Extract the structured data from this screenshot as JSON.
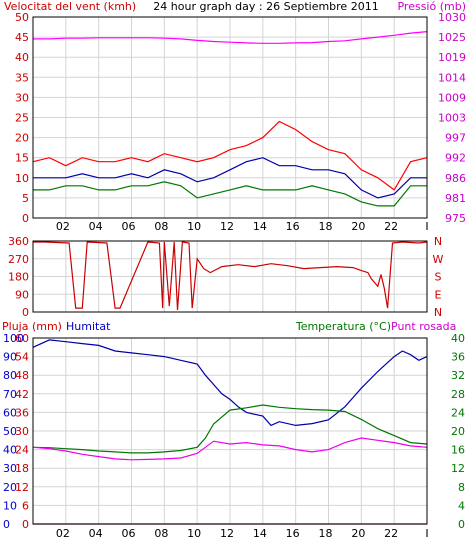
{
  "chart_data": [
    {
      "type": "line",
      "title": "24 hour graph day : 26 Septiembre 2011",
      "left_axis_label": "Velocitat del vent (kmh)",
      "right_axis_label": "Pressió (mb)",
      "x_tick_labels": [
        "02",
        "04",
        "06",
        "08",
        "10",
        "12",
        "14",
        "16",
        "18",
        "20",
        "22",
        "I"
      ],
      "left_ticks": [
        "0",
        "5",
        "10",
        "15",
        "20",
        "25",
        "30",
        "35",
        "40",
        "45",
        "50"
      ],
      "right_ticks": [
        "975",
        "981",
        "986",
        "992",
        "997",
        "1003",
        "1009",
        "1014",
        "1019",
        "1025",
        "1030"
      ],
      "ylim_left": [
        0,
        50
      ],
      "ylim_right": [
        975,
        1030
      ],
      "series": [
        {
          "name": "Pressió",
          "axis": "right",
          "color": "#ff00ff",
          "x": [
            0,
            1,
            2,
            3,
            4,
            5,
            6,
            7,
            8,
            9,
            10,
            11,
            12,
            13,
            14,
            15,
            16,
            17,
            18,
            19,
            20,
            21,
            22,
            23,
            24
          ],
          "values": [
            1024.0,
            1024.0,
            1024.2,
            1024.2,
            1024.3,
            1024.3,
            1024.3,
            1024.3,
            1024.2,
            1024.0,
            1023.6,
            1023.3,
            1023.1,
            1022.9,
            1022.8,
            1022.8,
            1022.9,
            1023.0,
            1023.3,
            1023.5,
            1024.0,
            1024.5,
            1025.0,
            1025.6,
            1026.0
          ]
        },
        {
          "name": "",
          "axis": "left",
          "color": "#ff0000",
          "x": [
            0,
            1,
            2,
            3,
            4,
            5,
            6,
            7,
            8,
            9,
            10,
            11,
            12,
            13,
            14,
            15,
            16,
            17,
            18,
            19,
            20,
            21,
            22,
            23,
            24
          ],
          "values": [
            14,
            15,
            13,
            15,
            14,
            14,
            15,
            14,
            16,
            15,
            14,
            15,
            17,
            18,
            20,
            24,
            22,
            19,
            17,
            16,
            12,
            10,
            7,
            14,
            15
          ]
        },
        {
          "name": "",
          "axis": "left",
          "color": "#0000aa",
          "x": [
            0,
            1,
            2,
            3,
            4,
            5,
            6,
            7,
            8,
            9,
            10,
            11,
            12,
            13,
            14,
            15,
            16,
            17,
            18,
            19,
            20,
            21,
            22,
            23,
            24
          ],
          "values": [
            10,
            10,
            10,
            11,
            10,
            10,
            11,
            10,
            12,
            11,
            9,
            10,
            12,
            14,
            15,
            13,
            13,
            12,
            12,
            11,
            7,
            5,
            6,
            10,
            10
          ]
        },
        {
          "name": "",
          "axis": "left",
          "color": "#007700",
          "x": [
            0,
            1,
            2,
            3,
            4,
            5,
            6,
            7,
            8,
            9,
            10,
            11,
            12,
            13,
            14,
            15,
            16,
            17,
            18,
            19,
            20,
            21,
            22,
            23,
            24
          ],
          "values": [
            7,
            7,
            8,
            8,
            7,
            7,
            8,
            8,
            9,
            8,
            5,
            6,
            7,
            8,
            7,
            7,
            7,
            8,
            7,
            6,
            4,
            3,
            3,
            8,
            8
          ]
        }
      ]
    },
    {
      "type": "line",
      "left_ticks": [
        "360",
        "270",
        "180",
        "90",
        "0"
      ],
      "right_labels": [
        "N",
        "W",
        "S",
        "E",
        "N"
      ],
      "ylim": [
        0,
        360
      ],
      "series": [
        {
          "name": "",
          "color": "#cc0000",
          "x": [
            0,
            0.7,
            2.2,
            2.6,
            3.0,
            3.3,
            4.5,
            5.0,
            5.3,
            7.0,
            7.7,
            7.9,
            8.0,
            8.3,
            8.6,
            8.8,
            9.1,
            9.5,
            9.7,
            10.0,
            10.4,
            10.8,
            11.5,
            12.5,
            13.5,
            14.5,
            15.5,
            16.5,
            17.5,
            18.5,
            19.5,
            20.0,
            20.4,
            20.6,
            21.0,
            21.2,
            21.4,
            21.6,
            21.9,
            22.5,
            23.5,
            24.0
          ],
          "values": [
            355,
            355,
            350,
            20,
            20,
            355,
            350,
            20,
            20,
            355,
            350,
            20,
            355,
            30,
            355,
            10,
            355,
            350,
            20,
            270,
            220,
            200,
            230,
            240,
            230,
            245,
            235,
            220,
            225,
            230,
            225,
            210,
            200,
            170,
            130,
            190,
            120,
            20,
            350,
            355,
            350,
            355
          ]
        }
      ]
    },
    {
      "type": "line",
      "left_axis_label": "Pluja (mm)",
      "left2_axis_label": "Humitat",
      "right_axis_label": "Temperatura (°C)",
      "right2_axis_label": "Punt rosada",
      "left_ticks": [
        "0",
        "6",
        "12",
        "18",
        "24",
        "30",
        "36",
        "42",
        "48",
        "54",
        "60"
      ],
      "left2_ticks": [
        "0",
        "10",
        "20",
        "30",
        "40",
        "50",
        "60",
        "70",
        "80",
        "90",
        "100"
      ],
      "right_ticks": [
        "0",
        "4",
        "8",
        "12",
        "16",
        "20",
        "24",
        "28",
        "32",
        "36",
        "40"
      ],
      "ylim_rain": [
        0,
        60
      ],
      "ylim_humidity": [
        0,
        100
      ],
      "ylim_temperature": [
        0,
        40
      ],
      "series": [
        {
          "name": "Humitat",
          "axis": "humidity",
          "color": "#0000aa",
          "x": [
            0,
            1,
            2,
            3,
            4,
            5,
            6,
            7,
            8,
            9,
            10,
            10.5,
            11,
            11.5,
            12,
            12.5,
            13,
            14,
            14.5,
            15,
            16,
            17,
            18,
            19,
            19.5,
            20,
            21,
            22,
            22.5,
            23,
            23.5,
            24
          ],
          "values": [
            95,
            99,
            98,
            97,
            96,
            93,
            92,
            91,
            90,
            88,
            86,
            80,
            75,
            70,
            67,
            63,
            60,
            58,
            53,
            55,
            53,
            54,
            56,
            63,
            68,
            73,
            82,
            90,
            93,
            91,
            88,
            90
          ]
        },
        {
          "name": "Temperatura",
          "axis": "temperature",
          "color": "#007700",
          "x": [
            0,
            1,
            2,
            3,
            4,
            5,
            6,
            7,
            8,
            9,
            10,
            10.5,
            11,
            12,
            13,
            14,
            15,
            16,
            17,
            18,
            19,
            20,
            21,
            22,
            23,
            24
          ],
          "values": [
            16.5,
            16.4,
            16.2,
            16.0,
            15.7,
            15.5,
            15.3,
            15.3,
            15.5,
            15.8,
            16.5,
            18.5,
            21.5,
            24.5,
            25.0,
            25.6,
            25.1,
            24.8,
            24.6,
            24.5,
            24.2,
            22.5,
            20.5,
            19.0,
            17.5,
            17.2
          ]
        },
        {
          "name": "Punt rosada",
          "axis": "temperature",
          "color": "#ee00ee",
          "x": [
            0,
            1,
            2,
            3,
            4,
            5,
            6,
            7,
            8,
            9,
            10,
            10.5,
            11,
            12,
            13,
            14,
            15,
            16,
            17,
            18,
            19,
            20,
            21,
            22,
            23,
            24
          ],
          "values": [
            16.5,
            16.2,
            15.7,
            15.0,
            14.5,
            14.0,
            13.8,
            13.9,
            14.0,
            14.2,
            15.2,
            16.5,
            17.8,
            17.2,
            17.5,
            17.0,
            16.8,
            16.0,
            15.5,
            16.0,
            17.5,
            18.5,
            18.0,
            17.5,
            16.8,
            16.5
          ]
        },
        {
          "name": "Pluja",
          "axis": "rain",
          "color": "#cc0000",
          "x": [
            0,
            24
          ],
          "values": [
            0,
            0
          ]
        }
      ]
    }
  ]
}
